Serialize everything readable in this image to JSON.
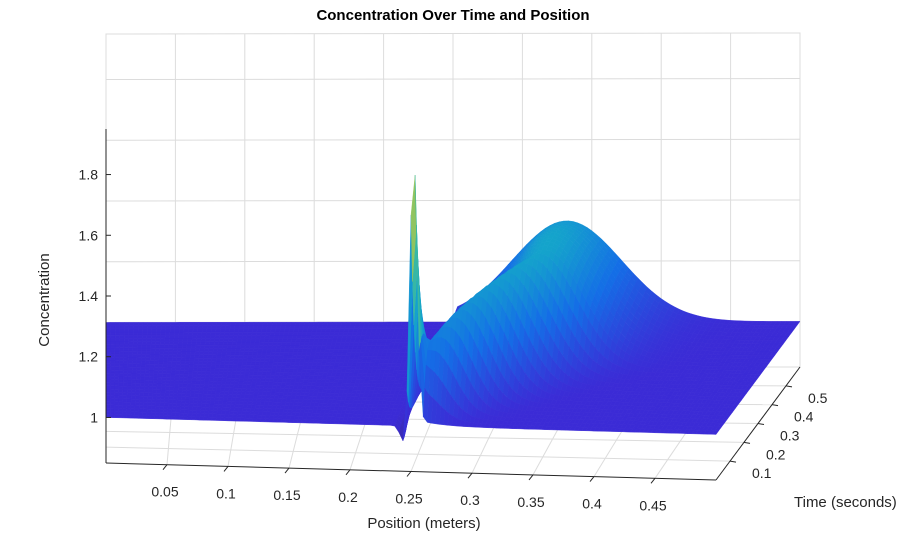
{
  "chart_data": {
    "type": "surface3d",
    "title": "Concentration Over Time and Position",
    "xlabel": "Position (meters)",
    "ylabel": "Time (seconds)",
    "zlabel": "Concentration",
    "xlim": [
      0,
      0.5
    ],
    "ylim": [
      0,
      0.6
    ],
    "zlim": [
      0.85,
      1.95
    ],
    "x_ticks": [
      "0.05",
      "0.1",
      "0.15",
      "0.2",
      "0.25",
      "0.3",
      "0.35",
      "0.4",
      "0.45"
    ],
    "y_ticks": [
      "0.1",
      "0.2",
      "0.3",
      "0.4",
      "0.5"
    ],
    "z_ticks": [
      "1",
      "1.2",
      "1.4",
      "1.6",
      "1.8"
    ],
    "baseline_concentration": 1.0,
    "spike_position": 0.25,
    "spike_peak_concentration": 1.9,
    "bump_peak_concentration": 1.38,
    "bump_peak_position": 0.33,
    "grid": true,
    "colormap": "parula",
    "colors": {
      "surface_base": "#3b2bd6",
      "surface_high": "#f9d72c",
      "background": "#ffffff"
    }
  }
}
